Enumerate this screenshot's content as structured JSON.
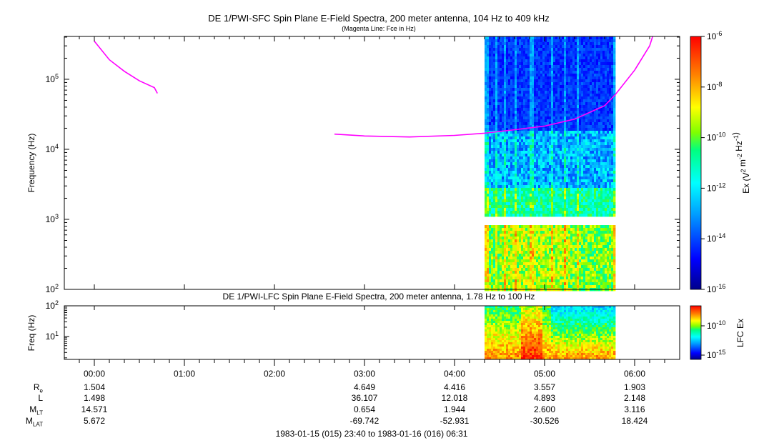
{
  "chart_data": [
    {
      "type": "heatmap",
      "title": "DE 1/PWI-SFC  Spin Plane E-Field Spectra, 200 meter antenna, 104 Hz to 409 kHz",
      "subtitle": "(Magenta Line: Fce in Hz)",
      "ylabel": "Frequency (Hz)",
      "yscale": "log",
      "ylim": [
        100,
        409000
      ],
      "ytick_labels": [
        "10^2",
        "10^3",
        "10^4",
        "10^5"
      ],
      "colorbar": {
        "label": "Ex (V^2 m^-2 Hz^-1)",
        "scale": "log",
        "range": [
          1e-16,
          1e-06
        ],
        "tick_labels": [
          "10^-6",
          "10^-8",
          "10^-10",
          "10^-12",
          "10^-14",
          "10^-16"
        ]
      },
      "data_coverage_utc": [
        "04:20",
        "05:47"
      ],
      "data_gap_hz": [
        900,
        1050
      ],
      "fce_line": {
        "color": "#ff00ff",
        "segments": [
          [
            [
              "00:00",
              350000
            ],
            [
              "00:10",
              190000
            ],
            [
              "00:20",
              130000
            ],
            [
              "00:30",
              95000
            ],
            [
              "00:40",
              76000
            ],
            [
              "00:42",
              63000
            ]
          ],
          [
            [
              "02:40",
              16500
            ],
            [
              "03:00",
              15500
            ],
            [
              "03:30",
              15000
            ],
            [
              "04:00",
              15800
            ],
            [
              "04:20",
              17000
            ],
            [
              "04:40",
              19000
            ],
            [
              "05:00",
              21500
            ],
            [
              "05:20",
              27000
            ],
            [
              "05:40",
              42000
            ],
            [
              "05:47",
              60000
            ],
            [
              "06:00",
              135000
            ],
            [
              "06:10",
              300000
            ],
            [
              "06:12",
              409000
            ]
          ]
        ]
      }
    },
    {
      "type": "heatmap",
      "title": "DE 1/PWI-LFC  Spin Plane E-Field Spectra, 200 meter antenna, 1.78 Hz to 100 Hz",
      "ylabel": "Freq (Hz)",
      "yscale": "log",
      "ylim": [
        1.78,
        100
      ],
      "ytick_labels": [
        "10^1",
        "10^2"
      ],
      "colorbar": {
        "label": "LFC Ex",
        "scale": "log",
        "tick_labels": [
          "10^-10",
          "10^-15"
        ]
      },
      "data_coverage_utc": [
        "04:20",
        "05:47"
      ]
    }
  ],
  "time_axis": {
    "ticks": [
      "00:00",
      "01:00",
      "02:00",
      "03:00",
      "04:00",
      "05:00",
      "06:00"
    ],
    "range_label": "1983-01-15 (015) 23:40 to 1983-01-16 (016) 06:31"
  },
  "ephemeris": {
    "labels": [
      "R",
      "L",
      "M",
      "M"
    ],
    "label_subs": [
      "e",
      "",
      "LT",
      "LAT"
    ],
    "rows": [
      [
        "1.504",
        "",
        "",
        "4.649",
        "4.416",
        "3.557",
        "1.903"
      ],
      [
        "1.498",
        "",
        "",
        "36.107",
        "12.018",
        "4.893",
        "2.148"
      ],
      [
        "14.571",
        "",
        "",
        "0.654",
        "1.944",
        "2.600",
        "3.116"
      ],
      [
        "5.672",
        "",
        "",
        "-69.742",
        "-52.931",
        "-30.526",
        "18.424"
      ]
    ]
  }
}
